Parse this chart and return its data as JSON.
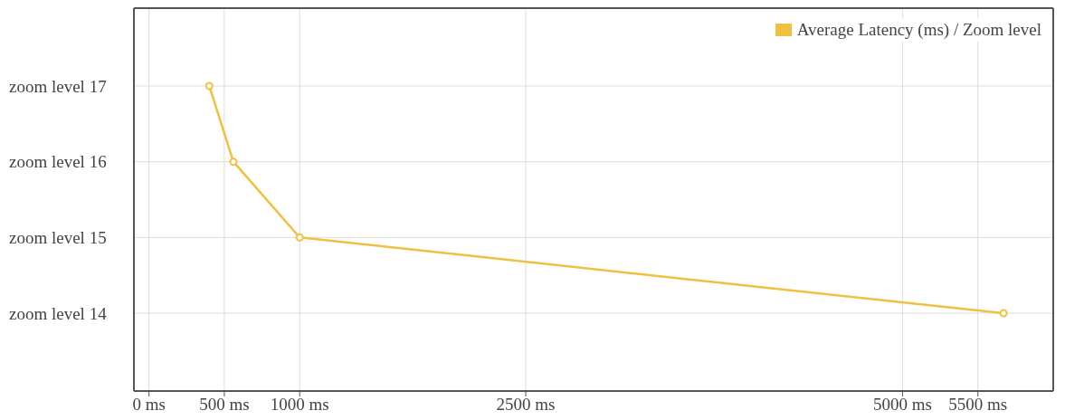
{
  "chart_data": {
    "type": "line",
    "orientation": "horizontal",
    "categories": [
      "zoom level 17",
      "zoom level 16",
      "zoom level 15",
      "zoom level 14"
    ],
    "series": [
      {
        "name": "Average Latency (ms) / Zoom level",
        "color": "#f0c040",
        "values": [
          400,
          560,
          1000,
          5670
        ]
      }
    ],
    "xlim": [
      -100,
      6000
    ],
    "xticks": [
      {
        "value": 0,
        "label": "0 ms"
      },
      {
        "value": 500,
        "label": "500 ms"
      },
      {
        "value": 1000,
        "label": "1000 ms"
      },
      {
        "value": 2500,
        "label": "2500 ms"
      },
      {
        "value": 5000,
        "label": "5000 ms"
      },
      {
        "value": 5500,
        "label": "5500 ms"
      }
    ],
    "grid": true,
    "legend": "top right",
    "marker": "circle",
    "line_style": "solid"
  }
}
